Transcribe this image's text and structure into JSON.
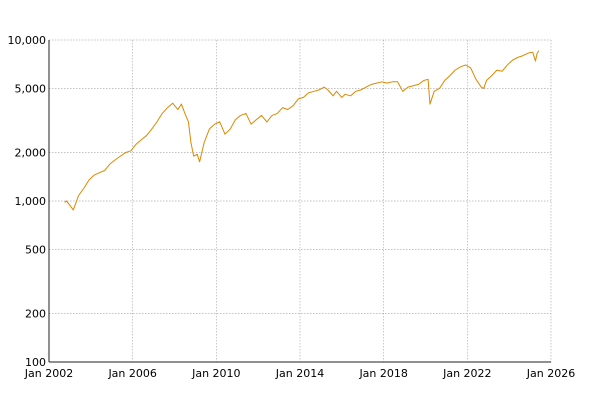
{
  "chart_data": {
    "type": "line",
    "title": "",
    "xlabel": "",
    "ylabel": "",
    "y_scale": "log",
    "ylim": [
      100,
      10000
    ],
    "xlim": [
      "2002-01-01",
      "2026-01-01"
    ],
    "grid": true,
    "x_ticks": [
      {
        "value": "2002-01-01",
        "label": "Jan 2002"
      },
      {
        "value": "2006-01-01",
        "label": "Jan 2006"
      },
      {
        "value": "2010-01-01",
        "label": "Jan 2010"
      },
      {
        "value": "2014-01-01",
        "label": "Jan 2014"
      },
      {
        "value": "2018-01-01",
        "label": "Jan 2018"
      },
      {
        "value": "2022-01-01",
        "label": "Jan 2022"
      },
      {
        "value": "2026-01-01",
        "label": "Jan 2026"
      }
    ],
    "y_ticks": [
      {
        "value": 100,
        "label": "100"
      },
      {
        "value": 200,
        "label": "200"
      },
      {
        "value": 500,
        "label": "500"
      },
      {
        "value": 1000,
        "label": "1,000"
      },
      {
        "value": 2000,
        "label": "2,000"
      },
      {
        "value": 5000,
        "label": "5,000"
      },
      {
        "value": 10000,
        "label": "10,000"
      }
    ],
    "series": [
      {
        "color": "#dd8800",
        "points": [
          [
            "2002-10-01",
            980
          ],
          [
            "2002-11-01",
            1000
          ],
          [
            "2003-01-01",
            940
          ],
          [
            "2003-03-01",
            880
          ],
          [
            "2003-06-01",
            1080
          ],
          [
            "2003-09-01",
            1200
          ],
          [
            "2003-12-01",
            1350
          ],
          [
            "2004-03-01",
            1450
          ],
          [
            "2004-06-01",
            1500
          ],
          [
            "2004-09-01",
            1550
          ],
          [
            "2004-12-01",
            1700
          ],
          [
            "2005-03-01",
            1800
          ],
          [
            "2005-06-01",
            1900
          ],
          [
            "2005-09-01",
            2000
          ],
          [
            "2005-12-01",
            2050
          ],
          [
            "2006-03-01",
            2250
          ],
          [
            "2006-06-01",
            2400
          ],
          [
            "2006-09-01",
            2550
          ],
          [
            "2006-12-01",
            2800
          ],
          [
            "2007-03-01",
            3100
          ],
          [
            "2007-06-01",
            3500
          ],
          [
            "2007-09-01",
            3800
          ],
          [
            "2007-12-01",
            4050
          ],
          [
            "2008-03-01",
            3700
          ],
          [
            "2008-05-01",
            4000
          ],
          [
            "2008-07-01",
            3500
          ],
          [
            "2008-09-01",
            3100
          ],
          [
            "2008-10-15",
            2300
          ],
          [
            "2008-12-01",
            1900
          ],
          [
            "2009-02-01",
            1950
          ],
          [
            "2009-03-15",
            1750
          ],
          [
            "2009-06-01",
            2300
          ],
          [
            "2009-09-01",
            2800
          ],
          [
            "2009-12-01",
            3000
          ],
          [
            "2010-03-01",
            3100
          ],
          [
            "2010-06-01",
            2600
          ],
          [
            "2010-09-01",
            2800
          ],
          [
            "2010-12-01",
            3200
          ],
          [
            "2011-03-01",
            3400
          ],
          [
            "2011-06-01",
            3500
          ],
          [
            "2011-09-01",
            3000
          ],
          [
            "2011-12-01",
            3200
          ],
          [
            "2012-03-01",
            3400
          ],
          [
            "2012-06-01",
            3100
          ],
          [
            "2012-09-01",
            3400
          ],
          [
            "2012-12-01",
            3500
          ],
          [
            "2013-03-01",
            3800
          ],
          [
            "2013-06-01",
            3700
          ],
          [
            "2013-09-01",
            3900
          ],
          [
            "2013-12-01",
            4300
          ],
          [
            "2014-03-01",
            4400
          ],
          [
            "2014-06-01",
            4700
          ],
          [
            "2014-09-01",
            4800
          ],
          [
            "2014-12-01",
            4900
          ],
          [
            "2015-03-01",
            5100
          ],
          [
            "2015-05-01",
            4900
          ],
          [
            "2015-08-01",
            4500
          ],
          [
            "2015-10-01",
            4800
          ],
          [
            "2016-01-01",
            4400
          ],
          [
            "2016-03-01",
            4600
          ],
          [
            "2016-06-01",
            4500
          ],
          [
            "2016-09-01",
            4800
          ],
          [
            "2016-12-01",
            4900
          ],
          [
            "2017-03-01",
            5100
          ],
          [
            "2017-06-01",
            5300
          ],
          [
            "2017-09-01",
            5400
          ],
          [
            "2017-12-01",
            5500
          ],
          [
            "2018-03-01",
            5400
          ],
          [
            "2018-06-01",
            5500
          ],
          [
            "2018-09-01",
            5500
          ],
          [
            "2018-12-01",
            4800
          ],
          [
            "2019-03-01",
            5100
          ],
          [
            "2019-06-01",
            5200
          ],
          [
            "2019-09-01",
            5300
          ],
          [
            "2019-12-01",
            5600
          ],
          [
            "2020-02-15",
            5700
          ],
          [
            "2020-03-20",
            4000
          ],
          [
            "2020-06-01",
            4800
          ],
          [
            "2020-09-01",
            5000
          ],
          [
            "2020-12-01",
            5600
          ],
          [
            "2021-03-01",
            6000
          ],
          [
            "2021-06-01",
            6500
          ],
          [
            "2021-09-01",
            6800
          ],
          [
            "2021-12-01",
            7000
          ],
          [
            "2022-03-01",
            6700
          ],
          [
            "2022-06-01",
            5700
          ],
          [
            "2022-09-01",
            5100
          ],
          [
            "2022-10-15",
            5000
          ],
          [
            "2022-12-01",
            5600
          ],
          [
            "2023-03-01",
            6000
          ],
          [
            "2023-06-01",
            6500
          ],
          [
            "2023-09-01",
            6400
          ],
          [
            "2023-12-01",
            7000
          ],
          [
            "2024-03-01",
            7500
          ],
          [
            "2024-06-01",
            7800
          ],
          [
            "2024-09-01",
            8000
          ],
          [
            "2024-12-01",
            8300
          ],
          [
            "2025-02-15",
            8400
          ],
          [
            "2025-04-05",
            7400
          ],
          [
            "2025-05-01",
            8200
          ],
          [
            "2025-06-01",
            8600
          ]
        ]
      }
    ]
  }
}
